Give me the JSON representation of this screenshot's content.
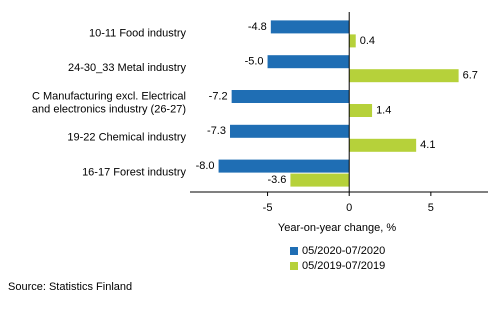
{
  "chart_data": {
    "type": "hbar",
    "categories": [
      "10-11 Food industry",
      "24-30_33 Metal industry",
      "C Manufacturing excl. Electrical\nand electronics industry (26-27)",
      "19-22 Chemical industry",
      "16-17 Forest industry"
    ],
    "series": [
      {
        "name": "05/2020-07/2020",
        "color": "#1f6eb4",
        "values": [
          -4.8,
          -5.0,
          -7.2,
          -7.3,
          -8.0
        ],
        "value_labels": [
          "-4.8",
          "-5.0",
          "-7.2",
          "-7.3",
          "-8.0"
        ]
      },
      {
        "name": "05/2019-07/2019",
        "color": "#b6d13a",
        "values": [
          0.4,
          6.7,
          1.4,
          4.1,
          -3.6
        ],
        "value_labels": [
          "0.4",
          "6.7",
          "1.4",
          "4.1",
          "-3.6"
        ]
      }
    ],
    "xlabel": "Year-on-year change, %",
    "xlim": [
      -9.75,
      8.5
    ],
    "xticks": [
      -5,
      0,
      5
    ],
    "grid": false,
    "source": "Source: Statistics Finland"
  }
}
